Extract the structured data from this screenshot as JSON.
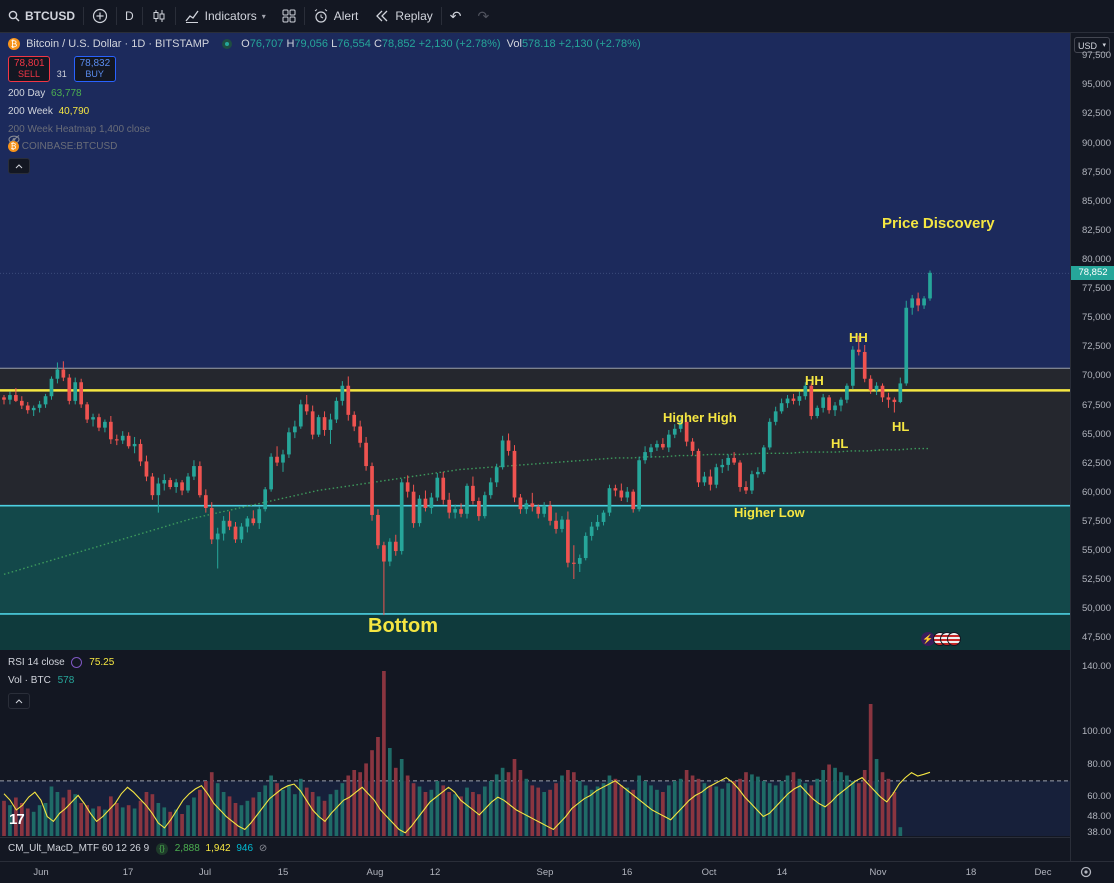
{
  "toolbar": {
    "symbol": "BTCUSD",
    "interval": "D",
    "indicators_label": "Indicators",
    "alert_label": "Alert",
    "replay_label": "Replay"
  },
  "legend": {
    "title": "Bitcoin / U.S. Dollar · 1D · BITSTAMP",
    "open_label": "O",
    "open": "76,707",
    "high_label": "H",
    "high": "79,056",
    "low_label": "L",
    "low": "76,554",
    "close_label": "C",
    "close": "78,852",
    "change": "+2,130 (+2.78%)",
    "vol_label": "Vol",
    "vol": "578.18",
    "vol_change": "+2,130 (+2.78%)",
    "sell_price": "78,801",
    "sell_label": "SELL",
    "spread": "31",
    "buy_price": "78,832",
    "buy_label": "BUY",
    "ma200_label": "200 Day",
    "ma200_value": "63,778",
    "ma200w_label": "200 Week",
    "ma200w_value": "40,790",
    "heatmap_label": "200 Week Heatmap 1,400 close",
    "coinbase_label": "COINBASE:BTCUSD"
  },
  "annotations": {
    "price_discovery": "Price Discovery",
    "hh1": "HH",
    "hh2": "HH",
    "higher_high": "Higher High",
    "hl1": "HL",
    "hl2": "HL",
    "higher_low": "Higher Low",
    "bottom": "Bottom"
  },
  "rsi_pane": {
    "rsi_label": "RSI 14 close",
    "rsi_value": "75.25",
    "vol_label": "Vol · BTC",
    "vol_value": "578"
  },
  "macd_pane": {
    "label": "CM_Ult_MacD_MTF 60 12 26 9",
    "v1": "2,888",
    "v2": "1,942",
    "v3": "946"
  },
  "price_axis": {
    "currency": "USD",
    "labels": [
      "97,500",
      "95,000",
      "92,500",
      "90,000",
      "87,500",
      "85,000",
      "82,500",
      "80,000",
      "77,500",
      "75,000",
      "72,500",
      "70,000",
      "67,500",
      "65,000",
      "62,500",
      "60,000",
      "57,500",
      "55,000",
      "52,500",
      "50,000",
      "47,500"
    ],
    "last_price": "78,852"
  },
  "rsi_axis": {
    "labels": [
      "140.00",
      "100.00",
      "80.00",
      "60.00",
      "48.00",
      "38.00"
    ]
  },
  "time_axis": {
    "labels": [
      "Jun",
      "17",
      "Jul",
      "15",
      "Aug",
      "12",
      "Sep",
      "16",
      "Oct",
      "14",
      "Nov",
      "18",
      "Dec"
    ]
  },
  "chart_data": {
    "type": "candlestick",
    "symbol": "BTCUSD",
    "interval": "1D",
    "ylim": [
      46500,
      99500
    ],
    "candles_ohlc": [
      [
        68200,
        68400,
        67600,
        68000
      ],
      [
        68000,
        68700,
        67600,
        68400
      ],
      [
        68400,
        69000,
        67800,
        67900
      ],
      [
        67900,
        68300,
        67200,
        67500
      ],
      [
        67500,
        67800,
        66800,
        67100
      ],
      [
        67100,
        67500,
        66600,
        67300
      ],
      [
        67300,
        67900,
        66900,
        67600
      ],
      [
        67600,
        68500,
        67300,
        68300
      ],
      [
        68300,
        70000,
        68000,
        69800
      ],
      [
        69800,
        71200,
        69400,
        70600
      ],
      [
        70600,
        71300,
        69600,
        69900
      ],
      [
        69900,
        70200,
        67600,
        67900
      ],
      [
        67900,
        69900,
        67600,
        69500
      ],
      [
        69500,
        69800,
        67300,
        67600
      ],
      [
        67600,
        67800,
        66000,
        66300
      ],
      [
        66300,
        66800,
        65700,
        66500
      ],
      [
        66500,
        66800,
        65300,
        65600
      ],
      [
        65600,
        66300,
        65200,
        66100
      ],
      [
        66100,
        66600,
        64200,
        64600
      ],
      [
        64600,
        65000,
        64100,
        64500
      ],
      [
        64500,
        65300,
        64200,
        64900
      ],
      [
        64900,
        65200,
        63800,
        64000
      ],
      [
        64000,
        64800,
        63400,
        64200
      ],
      [
        64200,
        64600,
        62300,
        62700
      ],
      [
        62700,
        63200,
        61000,
        61400
      ],
      [
        61400,
        61700,
        59400,
        59800
      ],
      [
        59800,
        61300,
        58300,
        60800
      ],
      [
        60800,
        61600,
        60200,
        61100
      ],
      [
        61100,
        61300,
        60300,
        60500
      ],
      [
        60500,
        61200,
        60000,
        60900
      ],
      [
        60900,
        61100,
        59800,
        60200
      ],
      [
        60200,
        61700,
        60000,
        61400
      ],
      [
        61400,
        62800,
        61100,
        62300
      ],
      [
        62300,
        62700,
        59600,
        59800
      ],
      [
        59800,
        60300,
        58300,
        58700
      ],
      [
        58700,
        59200,
        55600,
        56000
      ],
      [
        56000,
        57000,
        53500,
        56500
      ],
      [
        56500,
        58000,
        55900,
        57600
      ],
      [
        57600,
        58400,
        56800,
        57100
      ],
      [
        57100,
        57500,
        55700,
        56000
      ],
      [
        56000,
        57400,
        55700,
        57100
      ],
      [
        57100,
        58000,
        56600,
        57800
      ],
      [
        57800,
        58500,
        57200,
        57400
      ],
      [
        57400,
        58800,
        56900,
        58600
      ],
      [
        58600,
        60500,
        58400,
        60300
      ],
      [
        60300,
        63400,
        60100,
        63100
      ],
      [
        63100,
        64000,
        62300,
        62600
      ],
      [
        62600,
        63700,
        61800,
        63300
      ],
      [
        63300,
        65600,
        63000,
        65200
      ],
      [
        65200,
        66200,
        64700,
        65700
      ],
      [
        65700,
        68000,
        65500,
        67600
      ],
      [
        67600,
        68400,
        66700,
        67000
      ],
      [
        67000,
        67500,
        64600,
        65000
      ],
      [
        65000,
        66700,
        64800,
        66500
      ],
      [
        66500,
        67000,
        64900,
        65400
      ],
      [
        65400,
        66800,
        64200,
        66300
      ],
      [
        66300,
        68200,
        66000,
        67900
      ],
      [
        67900,
        69600,
        67500,
        69200
      ],
      [
        69200,
        70000,
        66200,
        66700
      ],
      [
        66700,
        67000,
        65300,
        65700
      ],
      [
        65700,
        66200,
        63900,
        64300
      ],
      [
        64300,
        64800,
        61900,
        62300
      ],
      [
        62300,
        62600,
        57600,
        58100
      ],
      [
        58100,
        58600,
        55200,
        55500
      ],
      [
        55500,
        55800,
        49500,
        54100
      ],
      [
        54100,
        56100,
        53700,
        55800
      ],
      [
        55800,
        56400,
        54600,
        55000
      ],
      [
        55000,
        61200,
        54700,
        60900
      ],
      [
        60900,
        61500,
        59600,
        60100
      ],
      [
        60100,
        60700,
        57000,
        57400
      ],
      [
        57400,
        59800,
        57100,
        59500
      ],
      [
        59500,
        60200,
        58400,
        58700
      ],
      [
        58700,
        60000,
        58200,
        59600
      ],
      [
        59600,
        61700,
        59300,
        61300
      ],
      [
        61300,
        61800,
        59000,
        59400
      ],
      [
        59400,
        60000,
        57800,
        58300
      ],
      [
        58300,
        59000,
        57800,
        58600
      ],
      [
        58600,
        59100,
        57900,
        58200
      ],
      [
        58200,
        60800,
        57800,
        60600
      ],
      [
        60600,
        61400,
        59000,
        59300
      ],
      [
        59300,
        59600,
        57600,
        58000
      ],
      [
        58000,
        60100,
        57800,
        59800
      ],
      [
        59800,
        61300,
        59500,
        60900
      ],
      [
        60900,
        62500,
        60500,
        62200
      ],
      [
        62200,
        64900,
        62000,
        64500
      ],
      [
        64500,
        65100,
        63200,
        63600
      ],
      [
        63600,
        64100,
        59200,
        59600
      ],
      [
        59600,
        59900,
        58200,
        58600
      ],
      [
        58600,
        59400,
        58200,
        59100
      ],
      [
        59100,
        60000,
        58400,
        58800
      ],
      [
        58800,
        59000,
        57800,
        58200
      ],
      [
        58200,
        59200,
        57900,
        58900
      ],
      [
        58900,
        59300,
        57200,
        57600
      ],
      [
        57600,
        58300,
        56500,
        56900
      ],
      [
        56900,
        58000,
        56600,
        57700
      ],
      [
        57700,
        58400,
        53600,
        54000
      ],
      [
        54000,
        55500,
        52600,
        53900
      ],
      [
        53900,
        54700,
        53200,
        54400
      ],
      [
        54400,
        56600,
        54200,
        56300
      ],
      [
        56300,
        57500,
        55900,
        57100
      ],
      [
        57100,
        58100,
        56800,
        57500
      ],
      [
        57500,
        58500,
        57200,
        58300
      ],
      [
        58300,
        60700,
        58000,
        60400
      ],
      [
        60400,
        60700,
        59700,
        60200
      ],
      [
        60200,
        60800,
        59300,
        59600
      ],
      [
        59600,
        60500,
        59200,
        60100
      ],
      [
        60100,
        60300,
        58300,
        58600
      ],
      [
        58600,
        63100,
        58400,
        62800
      ],
      [
        62800,
        64000,
        62500,
        63500
      ],
      [
        63500,
        64200,
        63000,
        63900
      ],
      [
        63900,
        64500,
        63600,
        64200
      ],
      [
        64200,
        64700,
        63700,
        63900
      ],
      [
        63900,
        65400,
        63500,
        65000
      ],
      [
        65000,
        65900,
        64700,
        65500
      ],
      [
        65500,
        66400,
        65200,
        66100
      ],
      [
        66100,
        66300,
        64000,
        64400
      ],
      [
        64400,
        64700,
        63200,
        63600
      ],
      [
        63600,
        63800,
        60500,
        60900
      ],
      [
        60900,
        61800,
        60600,
        61400
      ],
      [
        61400,
        62000,
        60200,
        60700
      ],
      [
        60700,
        62500,
        60400,
        62200
      ],
      [
        62200,
        62900,
        61700,
        62400
      ],
      [
        62400,
        63300,
        61900,
        63000
      ],
      [
        63000,
        63500,
        62400,
        62600
      ],
      [
        62600,
        62800,
        60100,
        60500
      ],
      [
        60500,
        61000,
        59900,
        60200
      ],
      [
        60200,
        61900,
        59900,
        61600
      ],
      [
        61600,
        62200,
        61300,
        61800
      ],
      [
        61800,
        64100,
        61600,
        63900
      ],
      [
        63900,
        66400,
        63700,
        66100
      ],
      [
        66100,
        67400,
        65800,
        67000
      ],
      [
        67000,
        68100,
        66800,
        67700
      ],
      [
        67700,
        68400,
        67300,
        68100
      ],
      [
        68100,
        68500,
        67600,
        67900
      ],
      [
        67900,
        68700,
        67500,
        68300
      ],
      [
        68300,
        69500,
        68000,
        69200
      ],
      [
        69200,
        69400,
        66300,
        66600
      ],
      [
        66600,
        67500,
        66400,
        67300
      ],
      [
        67300,
        68500,
        66900,
        68200
      ],
      [
        68200,
        68400,
        66800,
        67100
      ],
      [
        67100,
        67800,
        66600,
        67500
      ],
      [
        67500,
        68200,
        67000,
        68000
      ],
      [
        68000,
        69400,
        67700,
        69200
      ],
      [
        69200,
        72600,
        68900,
        72300
      ],
      [
        72300,
        73500,
        71800,
        72100
      ],
      [
        72100,
        72700,
        69500,
        69800
      ],
      [
        69800,
        70100,
        68500,
        68800
      ],
      [
        68800,
        69500,
        68400,
        69200
      ],
      [
        69200,
        69400,
        67800,
        68200
      ],
      [
        68200,
        68600,
        67300,
        68000
      ],
      [
        68000,
        68200,
        66900,
        67800
      ],
      [
        67800,
        69900,
        67700,
        69400
      ],
      [
        69400,
        76500,
        69200,
        75900
      ],
      [
        75900,
        77000,
        75300,
        76700
      ],
      [
        76700,
        77200,
        75600,
        76100
      ],
      [
        76100,
        76900,
        75800,
        76700
      ],
      [
        76700,
        79100,
        76500,
        78900
      ]
    ],
    "levels": {
      "resistance_yellow": 68800,
      "range_top_gray": 70700,
      "support_cyan": 58900,
      "bottom_cyan": 49600,
      "last_price": 78852
    },
    "ma200_series": [
      53000,
      53400,
      53800,
      54200,
      54600,
      55000,
      55400,
      55800,
      56200,
      56600,
      57000,
      57400,
      57800,
      58100,
      58400,
      58700,
      59000,
      59300,
      59600,
      59900,
      60200,
      60400,
      60600,
      60800,
      61000,
      61200,
      61400,
      61600,
      61800,
      62000,
      62100,
      62200,
      62300,
      62400,
      62500,
      62600,
      62700,
      62800,
      62900,
      63000,
      63000,
      63100,
      63100,
      63200,
      63200,
      63300,
      63300,
      63300,
      63400,
      63400,
      63400,
      63500,
      63500,
      63500,
      63600,
      63600,
      63700,
      63700,
      63800,
      63800
    ],
    "rsi_pane_ylim": [
      36,
      150
    ],
    "rsi_values": [
      62,
      58,
      52,
      55,
      60,
      63,
      58,
      48,
      45,
      50,
      53,
      57,
      61,
      56,
      50,
      45,
      48,
      52,
      56,
      62,
      66,
      63,
      59,
      55,
      50,
      44,
      41,
      46,
      52,
      58,
      62,
      65,
      67,
      62,
      56,
      52,
      48,
      45,
      42,
      40,
      44,
      49,
      54,
      59,
      62,
      65,
      67,
      68,
      64,
      58,
      52,
      48,
      45,
      50,
      54,
      58,
      60,
      63,
      66,
      62,
      58,
      52,
      48,
      44,
      40,
      38,
      42,
      47,
      52,
      57,
      60,
      63,
      66,
      63,
      58,
      55,
      52,
      49,
      53,
      57,
      60,
      58,
      55,
      52,
      50,
      48,
      46,
      44,
      42,
      40,
      44,
      48,
      53,
      56,
      59,
      61,
      64,
      66,
      68,
      70,
      67,
      64,
      61,
      58,
      55,
      52,
      50,
      48,
      46,
      50,
      54,
      58,
      61,
      63,
      66,
      68,
      70,
      72,
      69,
      65,
      60,
      56,
      52,
      48,
      50,
      54,
      58,
      62,
      65,
      67,
      63,
      59,
      56,
      54,
      57,
      61,
      64,
      67,
      70,
      72,
      68,
      64,
      60,
      57,
      62,
      68,
      72,
      75,
      73,
      74,
      75.25
    ],
    "volume_values": [
      32,
      28,
      35,
      30,
      25,
      22,
      28,
      30,
      45,
      40,
      35,
      42,
      38,
      30,
      28,
      25,
      27,
      24,
      36,
      30,
      26,
      28,
      25,
      32,
      40,
      38,
      30,
      26,
      22,
      24,
      20,
      28,
      35,
      42,
      50,
      58,
      48,
      40,
      36,
      30,
      28,
      32,
      35,
      40,
      46,
      55,
      48,
      42,
      46,
      38,
      52,
      44,
      40,
      36,
      32,
      38,
      42,
      48,
      55,
      60,
      58,
      66,
      78,
      90,
      150,
      80,
      62,
      70,
      55,
      48,
      45,
      40,
      42,
      50,
      46,
      40,
      38,
      36,
      44,
      40,
      38,
      45,
      50,
      56,
      62,
      58,
      70,
      60,
      52,
      46,
      44,
      40,
      42,
      48,
      55,
      60,
      58,
      50,
      46,
      42,
      45,
      48,
      55,
      52,
      46,
      44,
      42,
      55,
      50,
      46,
      42,
      40,
      46,
      50,
      52,
      60,
      55,
      52,
      48,
      46,
      45,
      43,
      48,
      50,
      52,
      58,
      56,
      54,
      50,
      48,
      46,
      50,
      55,
      58,
      52,
      48,
      46,
      52,
      60,
      65,
      62,
      58,
      55,
      50,
      48,
      60,
      120,
      70,
      58,
      52,
      40,
      8
    ]
  }
}
